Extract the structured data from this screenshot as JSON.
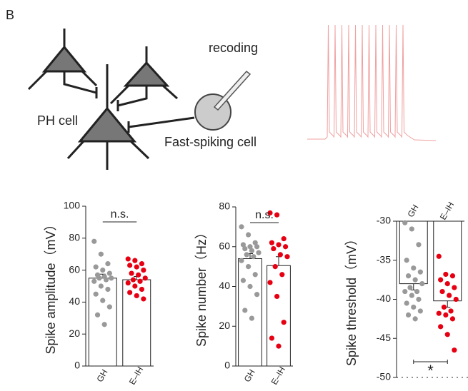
{
  "panel_label": "B",
  "diagram": {
    "recording_label": "recoding",
    "ph_cell_label": "PH cell",
    "fs_cell_label": "Fast-spiking cell"
  },
  "chart_data": [
    {
      "type": "bar",
      "y_label": "Spike amplitude（mV）",
      "categories": [
        "GH",
        "E–IH"
      ],
      "values": [
        55,
        54
      ],
      "errors": [
        2.5,
        2
      ],
      "points": [
        [
          78,
          70,
          64,
          62,
          60,
          58,
          57,
          56,
          55,
          55,
          54,
          53,
          50,
          48,
          45,
          41,
          37,
          32,
          26
        ],
        [
          67,
          66,
          64,
          63,
          62,
          60,
          58,
          57,
          55,
          54,
          53,
          52,
          50,
          48,
          46,
          44,
          42
        ]
      ],
      "point_colors": [
        "#999999",
        "#e60012"
      ],
      "bar_color": "#ffffff",
      "annotation": "n.s.",
      "ylim": [
        0,
        100
      ],
      "yticks": [
        0,
        20,
        40,
        60,
        80,
        100
      ]
    },
    {
      "type": "bar",
      "y_label": "Spike number（Hz）",
      "categories": [
        "GH",
        "E–IH"
      ],
      "values": [
        54,
        50.5
      ],
      "errors": [
        2.5,
        4.5
      ],
      "points": [
        [
          70,
          66,
          62,
          61,
          60,
          60,
          59,
          58,
          57,
          56,
          55,
          53,
          50,
          46,
          43,
          40,
          36,
          28,
          24
        ],
        [
          77,
          76,
          64,
          62,
          61,
          60,
          59,
          56,
          55,
          50,
          46,
          42,
          35,
          22,
          14,
          10
        ]
      ],
      "point_colors": [
        "#999999",
        "#e60012"
      ],
      "bar_color": "#ffffff",
      "annotation": "n.s.",
      "ylim": [
        0,
        80
      ],
      "yticks": [
        0,
        20,
        40,
        60,
        80
      ]
    },
    {
      "type": "bar",
      "y_label": "Spike threshold（mV）",
      "categories": [
        "GH",
        "E–IH"
      ],
      "values": [
        -38,
        -40.2
      ],
      "errors": [
        0.8,
        0.8
      ],
      "points": [
        [
          -30.2,
          -31,
          -33,
          -35,
          -36,
          -36.5,
          -37,
          -37.5,
          -38,
          -38.5,
          -39,
          -39,
          -39.5,
          -40,
          -40.5,
          -41,
          -41.5,
          -42,
          -42.5
        ],
        [
          -34.5,
          -36.8,
          -37,
          -37.5,
          -38,
          -38.5,
          -39,
          -39.5,
          -40,
          -41,
          -41.5,
          -41.8,
          -42,
          -42.5,
          -43.5,
          -44.5,
          -46.5
        ]
      ],
      "point_colors": [
        "#999999",
        "#e60012"
      ],
      "bar_color": "#ffffff",
      "annotation": "*",
      "ylim": [
        -50,
        -30
      ],
      "yticks": [
        -30,
        -35,
        -40,
        -45,
        -50
      ]
    }
  ]
}
